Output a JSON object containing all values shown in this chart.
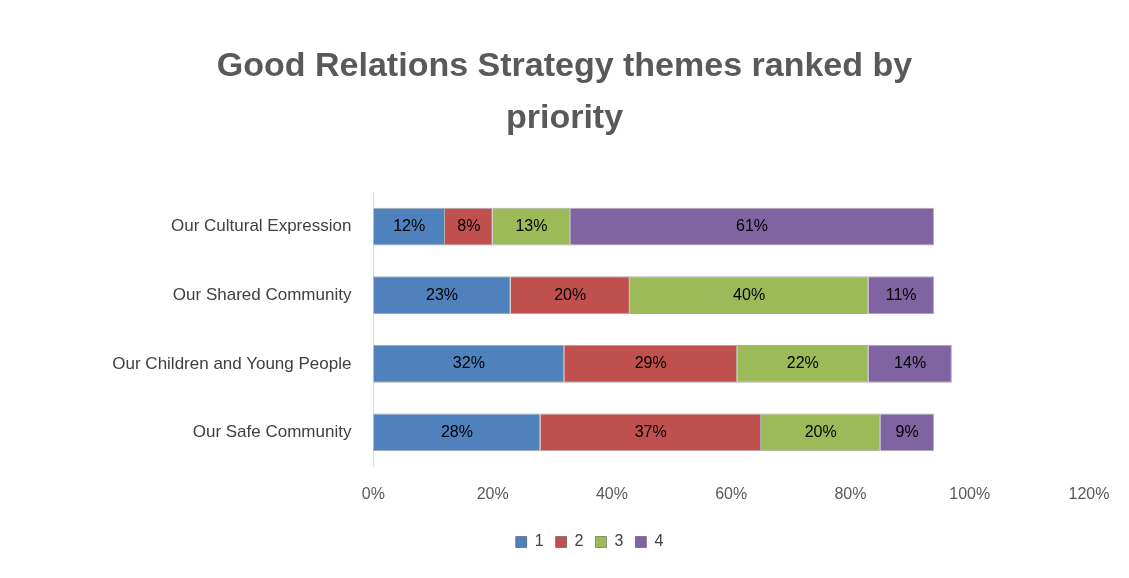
{
  "chart_data": {
    "type": "bar",
    "title": "Good Relations Strategy themes ranked by priority",
    "orientation": "horizontal",
    "stacked": true,
    "categories": [
      "Our Cultural Expression",
      "Our Shared Community",
      "Our Children and Young People",
      "Our Safe Community"
    ],
    "series": [
      {
        "name": "1",
        "color": "#4f81bd",
        "values": [
          12,
          23,
          32,
          28
        ],
        "value_labels": [
          "12%",
          "23%",
          "32%",
          "28%"
        ]
      },
      {
        "name": "2",
        "color": "#c0504d",
        "values": [
          8,
          20,
          29,
          37
        ],
        "value_labels": [
          "8%",
          "20%",
          "29%",
          "37%"
        ]
      },
      {
        "name": "3",
        "color": "#9bbb59",
        "values": [
          13,
          40,
          22,
          20
        ],
        "value_labels": [
          "13%",
          "40%",
          "22%",
          "20%"
        ]
      },
      {
        "name": "4",
        "color": "#8064a2",
        "values": [
          61,
          11,
          14,
          9
        ],
        "value_labels": [
          "61%",
          "11%",
          "14%",
          "9%"
        ]
      }
    ],
    "xlim": [
      0,
      120
    ],
    "xticks": [
      {
        "value": 0,
        "label": "0%"
      },
      {
        "value": 20,
        "label": "20%"
      },
      {
        "value": 40,
        "label": "40%"
      },
      {
        "value": 60,
        "label": "60%"
      },
      {
        "value": 80,
        "label": "80%"
      },
      {
        "value": 100,
        "label": "100%"
      },
      {
        "value": 120,
        "label": "120%"
      }
    ],
    "grid": false,
    "legend": "bottom"
  }
}
